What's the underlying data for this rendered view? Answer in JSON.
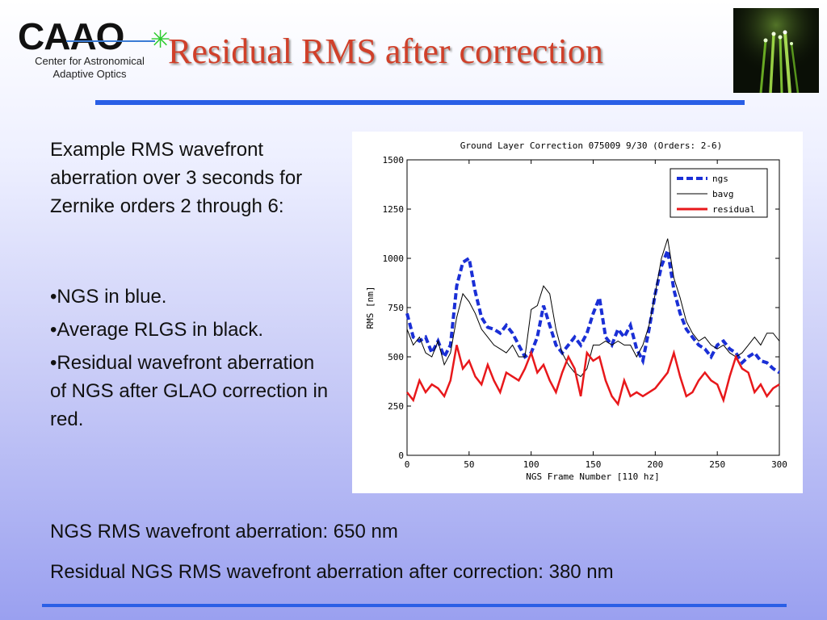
{
  "logo": {
    "acronym": "CAAO",
    "subtitle_line1": "Center for Astronomical",
    "subtitle_line2": "Adaptive Optics"
  },
  "slide": {
    "title": "Residual RMS after correction",
    "intro_text": "Example RMS wavefront aberration over 3 seconds for Zernike orders 2 through 6:",
    "bullets": [
      "•NGS in blue.",
      "•Average RLGS in black.",
      "•Residual wavefront aberration of NGS after GLAO correction in red."
    ],
    "summary_line1": "NGS RMS wavefront aberration: 650 nm",
    "summary_line2": "Residual NGS RMS wavefront aberration after correction: 380 nm"
  },
  "colors": {
    "title": "#d0402a",
    "rule": "#2a5fe6",
    "ngs": "#1a2fd6",
    "bavg": "#000000",
    "residual": "#e8181b"
  },
  "chart_data": {
    "type": "line",
    "title": "Ground Layer Correction 075009 9/30 (Orders: 2-6)",
    "xlabel": "NGS Frame Number [110 hz]",
    "ylabel": "RMS [nm]",
    "xlim": [
      0,
      300
    ],
    "ylim": [
      0,
      1500
    ],
    "xticks": [
      0,
      50,
      100,
      150,
      200,
      250,
      300
    ],
    "yticks": [
      0,
      250,
      500,
      750,
      1000,
      1250,
      1500
    ],
    "legend_position": "top-right",
    "grid": false,
    "series": [
      {
        "name": "ngs",
        "style": "dashed",
        "x": [
          0,
          5,
          10,
          15,
          20,
          25,
          30,
          35,
          40,
          45,
          50,
          55,
          60,
          65,
          70,
          75,
          80,
          85,
          90,
          95,
          100,
          105,
          110,
          115,
          120,
          125,
          130,
          135,
          140,
          145,
          150,
          155,
          160,
          165,
          170,
          175,
          180,
          185,
          190,
          195,
          200,
          205,
          210,
          215,
          220,
          225,
          230,
          235,
          240,
          245,
          250,
          255,
          260,
          265,
          270,
          275,
          280,
          285,
          290,
          295,
          300
        ],
        "y": [
          720,
          600,
          580,
          600,
          520,
          580,
          500,
          560,
          860,
          980,
          1000,
          830,
          700,
          650,
          640,
          620,
          660,
          620,
          560,
          500,
          520,
          600,
          760,
          660,
          560,
          520,
          560,
          600,
          560,
          620,
          720,
          800,
          600,
          560,
          640,
          600,
          660,
          540,
          480,
          640,
          820,
          960,
          1040,
          840,
          720,
          640,
          600,
          560,
          540,
          500,
          560,
          580,
          540,
          520,
          470,
          500,
          520,
          480,
          470,
          440,
          420
        ]
      },
      {
        "name": "bavg",
        "style": "solid",
        "x": [
          0,
          5,
          10,
          15,
          20,
          25,
          30,
          35,
          40,
          45,
          50,
          55,
          60,
          65,
          70,
          75,
          80,
          85,
          90,
          95,
          100,
          105,
          110,
          115,
          120,
          125,
          130,
          135,
          140,
          145,
          150,
          155,
          160,
          165,
          170,
          175,
          180,
          185,
          190,
          195,
          200,
          205,
          210,
          215,
          220,
          225,
          230,
          235,
          240,
          245,
          250,
          255,
          260,
          265,
          270,
          275,
          280,
          285,
          290,
          295,
          300
        ],
        "y": [
          640,
          560,
          600,
          520,
          500,
          580,
          460,
          520,
          700,
          820,
          780,
          720,
          640,
          600,
          560,
          540,
          520,
          560,
          500,
          500,
          740,
          760,
          860,
          820,
          640,
          520,
          460,
          420,
          400,
          440,
          560,
          560,
          580,
          560,
          580,
          560,
          560,
          500,
          560,
          660,
          820,
          1000,
          1100,
          900,
          800,
          680,
          620,
          580,
          600,
          560,
          540,
          560,
          520,
          500,
          520,
          560,
          600,
          560,
          620,
          620,
          580
        ]
      },
      {
        "name": "residual",
        "style": "solid",
        "x": [
          0,
          5,
          10,
          15,
          20,
          25,
          30,
          35,
          40,
          45,
          50,
          55,
          60,
          65,
          70,
          75,
          80,
          85,
          90,
          95,
          100,
          105,
          110,
          115,
          120,
          125,
          130,
          135,
          140,
          145,
          150,
          155,
          160,
          165,
          170,
          175,
          180,
          185,
          190,
          195,
          200,
          205,
          210,
          215,
          220,
          225,
          230,
          235,
          240,
          245,
          250,
          255,
          260,
          265,
          270,
          275,
          280,
          285,
          290,
          295,
          300
        ],
        "y": [
          320,
          280,
          380,
          320,
          360,
          340,
          300,
          380,
          560,
          440,
          480,
          400,
          360,
          460,
          380,
          320,
          420,
          400,
          380,
          440,
          520,
          420,
          460,
          380,
          320,
          420,
          500,
          440,
          300,
          520,
          480,
          500,
          380,
          300,
          260,
          380,
          300,
          320,
          300,
          320,
          340,
          380,
          420,
          520,
          400,
          300,
          320,
          380,
          420,
          380,
          360,
          280,
          400,
          500,
          440,
          420,
          320,
          360,
          300,
          340,
          360
        ]
      }
    ]
  }
}
